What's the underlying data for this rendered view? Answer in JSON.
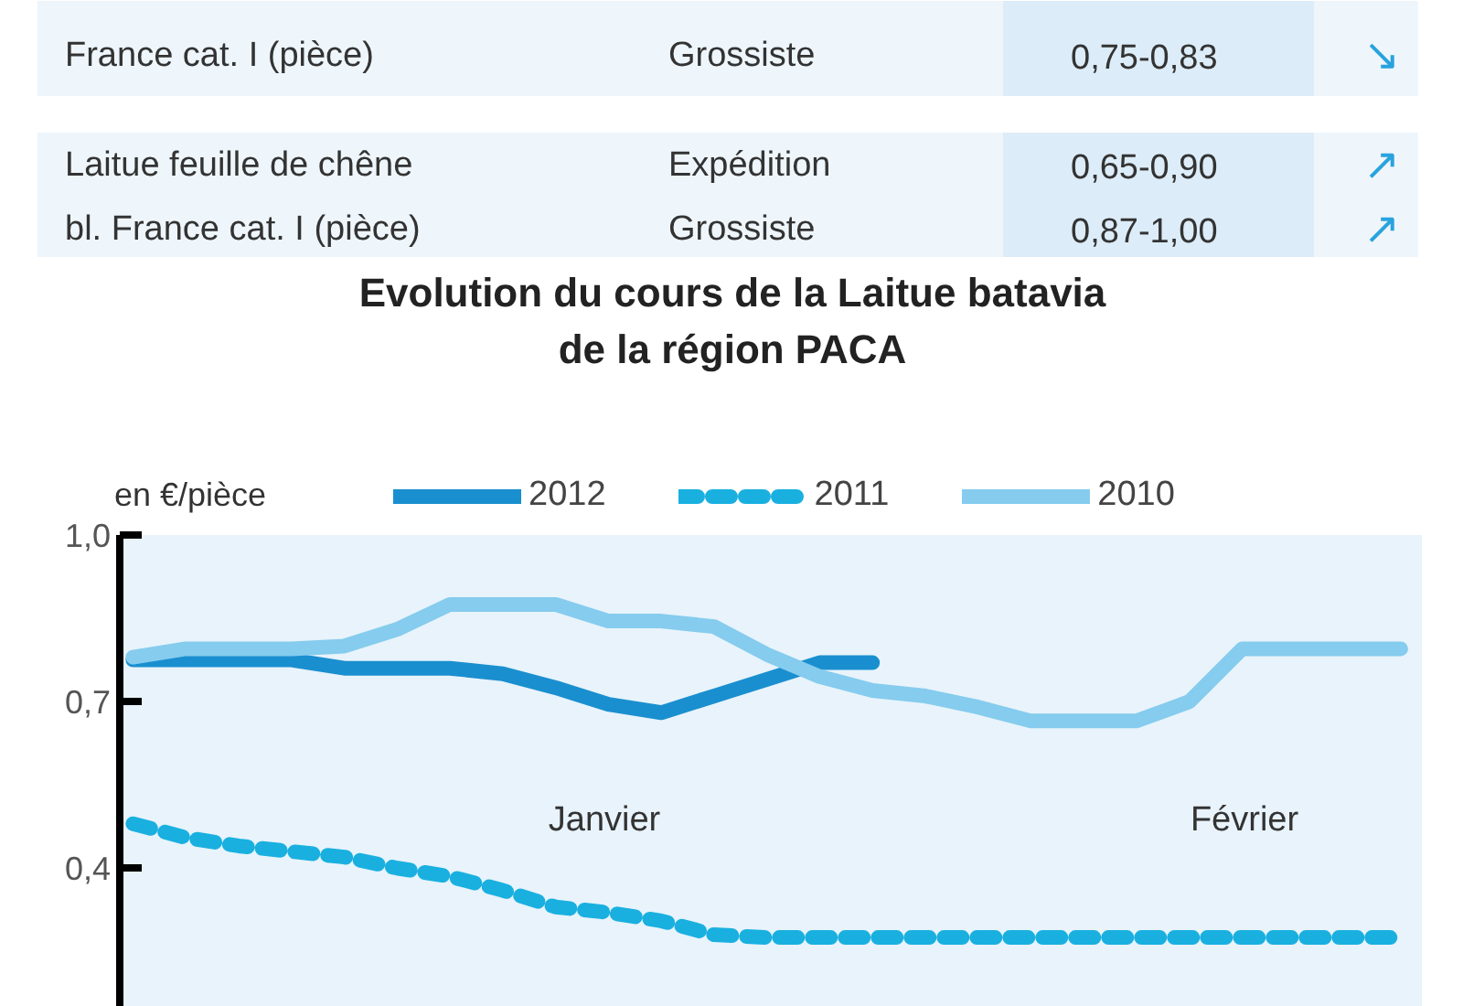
{
  "chart_data": {
    "type": "line",
    "title": "Evolution du cours de la Laitue batavia\nde la région PACA",
    "ylabel": "en €/pièce",
    "annotations": [
      "France cat. I (pièce)",
      "Grossiste",
      "0,75-0,83",
      "↘",
      "Laitue feuille de chêne",
      "Expédition",
      "0,65-0,90",
      "↗",
      "bl. France cat. I (pièce)",
      "Grossiste",
      "0,87-1,00",
      "↗",
      "Janvier",
      "Février"
    ],
    "categories": [
      null,
      null,
      null,
      null,
      null,
      null,
      null,
      null,
      null,
      null,
      null,
      null,
      null,
      null,
      null,
      null,
      null,
      null,
      null,
      null,
      null,
      null,
      null,
      null,
      null
    ],
    "series": [
      {
        "name": "2012",
        "color": "#1a8fcf",
        "line_style": "solid",
        "values": [
          0.775,
          0.775,
          0.775,
          0.775,
          0.76,
          0.76,
          0.76,
          0.75,
          0.725,
          0.695,
          0.68,
          0.71,
          0.74,
          0.77,
          0.77,
          null,
          null,
          null,
          null,
          null,
          null,
          null,
          null,
          null,
          null
        ]
      },
      {
        "name": "2011",
        "color": "#19b0e0",
        "line_style": "dashed",
        "values": [
          0.48,
          0.455,
          0.44,
          0.43,
          0.42,
          0.4,
          0.385,
          0.36,
          0.33,
          0.32,
          0.305,
          0.28,
          0.275,
          0.275,
          0.275,
          0.275,
          0.275,
          0.275,
          0.275,
          0.275,
          0.275,
          0.275,
          0.275,
          0.275,
          0.275
        ]
      },
      {
        "name": "2010",
        "color": "#85ccee",
        "line_style": "solid",
        "values": [
          0.78,
          0.795,
          0.795,
          0.795,
          0.8,
          0.83,
          0.875,
          0.875,
          0.875,
          0.845,
          0.845,
          0.835,
          0.785,
          0.745,
          0.72,
          0.71,
          0.69,
          0.665,
          0.665,
          0.665,
          0.7,
          0.795,
          0.795,
          0.795,
          0.795
        ]
      }
    ],
    "ylim": [
      0.15,
      1.0
    ],
    "yticks": [
      {
        "value": 0.4,
        "label": "0,4"
      },
      {
        "value": 0.7,
        "label": "0,7"
      },
      {
        "value": 1.0,
        "label": "1,0"
      }
    ],
    "tick_labels": "y",
    "grid": false,
    "legend": "top"
  }
}
